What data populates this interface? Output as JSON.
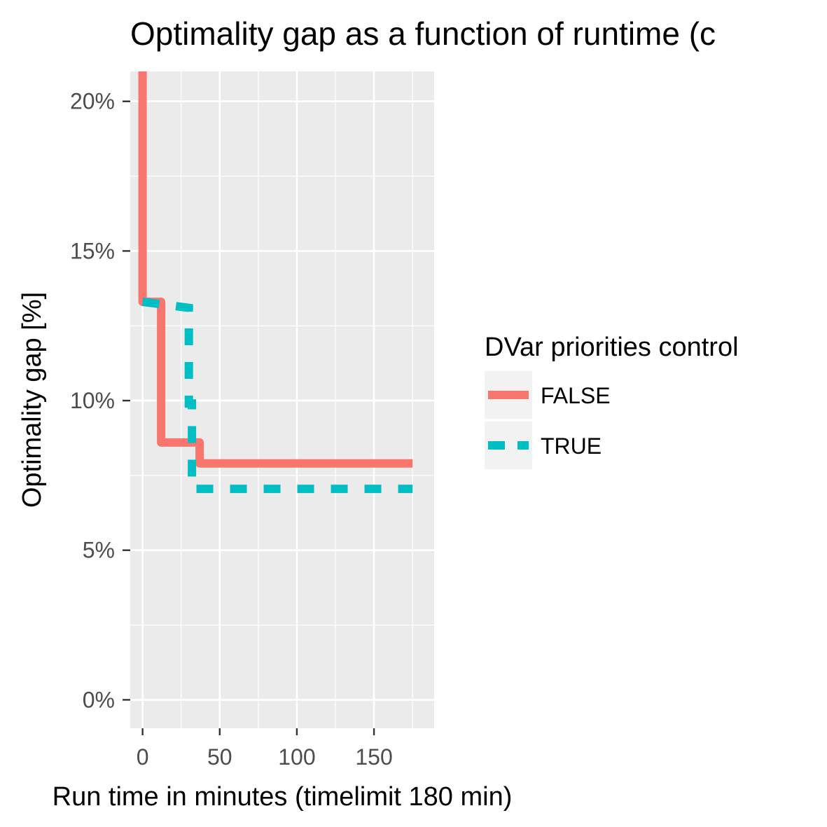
{
  "chart_data": {
    "type": "line",
    "line_shape": "step",
    "title": "Optimality gap as a function of runtime (c",
    "xlabel": "Run time in minutes (timelimit 180 min)",
    "ylabel": "Optimality gap [%]",
    "xlim": [
      -8,
      189
    ],
    "ylim": [
      -0.95,
      21
    ],
    "x_ticks": [
      0,
      50,
      100,
      150
    ],
    "x_tick_labels": [
      "0",
      "50",
      "100",
      "150"
    ],
    "y_ticks": [
      0,
      5,
      10,
      15,
      20
    ],
    "y_tick_labels": [
      "0%",
      "5%",
      "10%",
      "15%",
      "20%"
    ],
    "grid": true,
    "background": "#ebebeb",
    "legend": {
      "title": "DVar priorities control",
      "position": "right"
    },
    "series": [
      {
        "name": "FALSE",
        "color": "#f8766d",
        "dash": "solid",
        "x": [
          0,
          0,
          12,
          12,
          37,
          37,
          175
        ],
        "y": [
          21,
          13.3,
          13.3,
          8.6,
          8.6,
          7.9,
          7.9
        ]
      },
      {
        "name": "TRUE",
        "color": "#00bfc4",
        "dash": "dashed",
        "x": [
          0,
          0,
          30,
          30,
          32,
          32,
          175
        ],
        "y": [
          13.3,
          13.3,
          13.1,
          9.9,
          9.9,
          7.05,
          7.05
        ]
      }
    ]
  }
}
